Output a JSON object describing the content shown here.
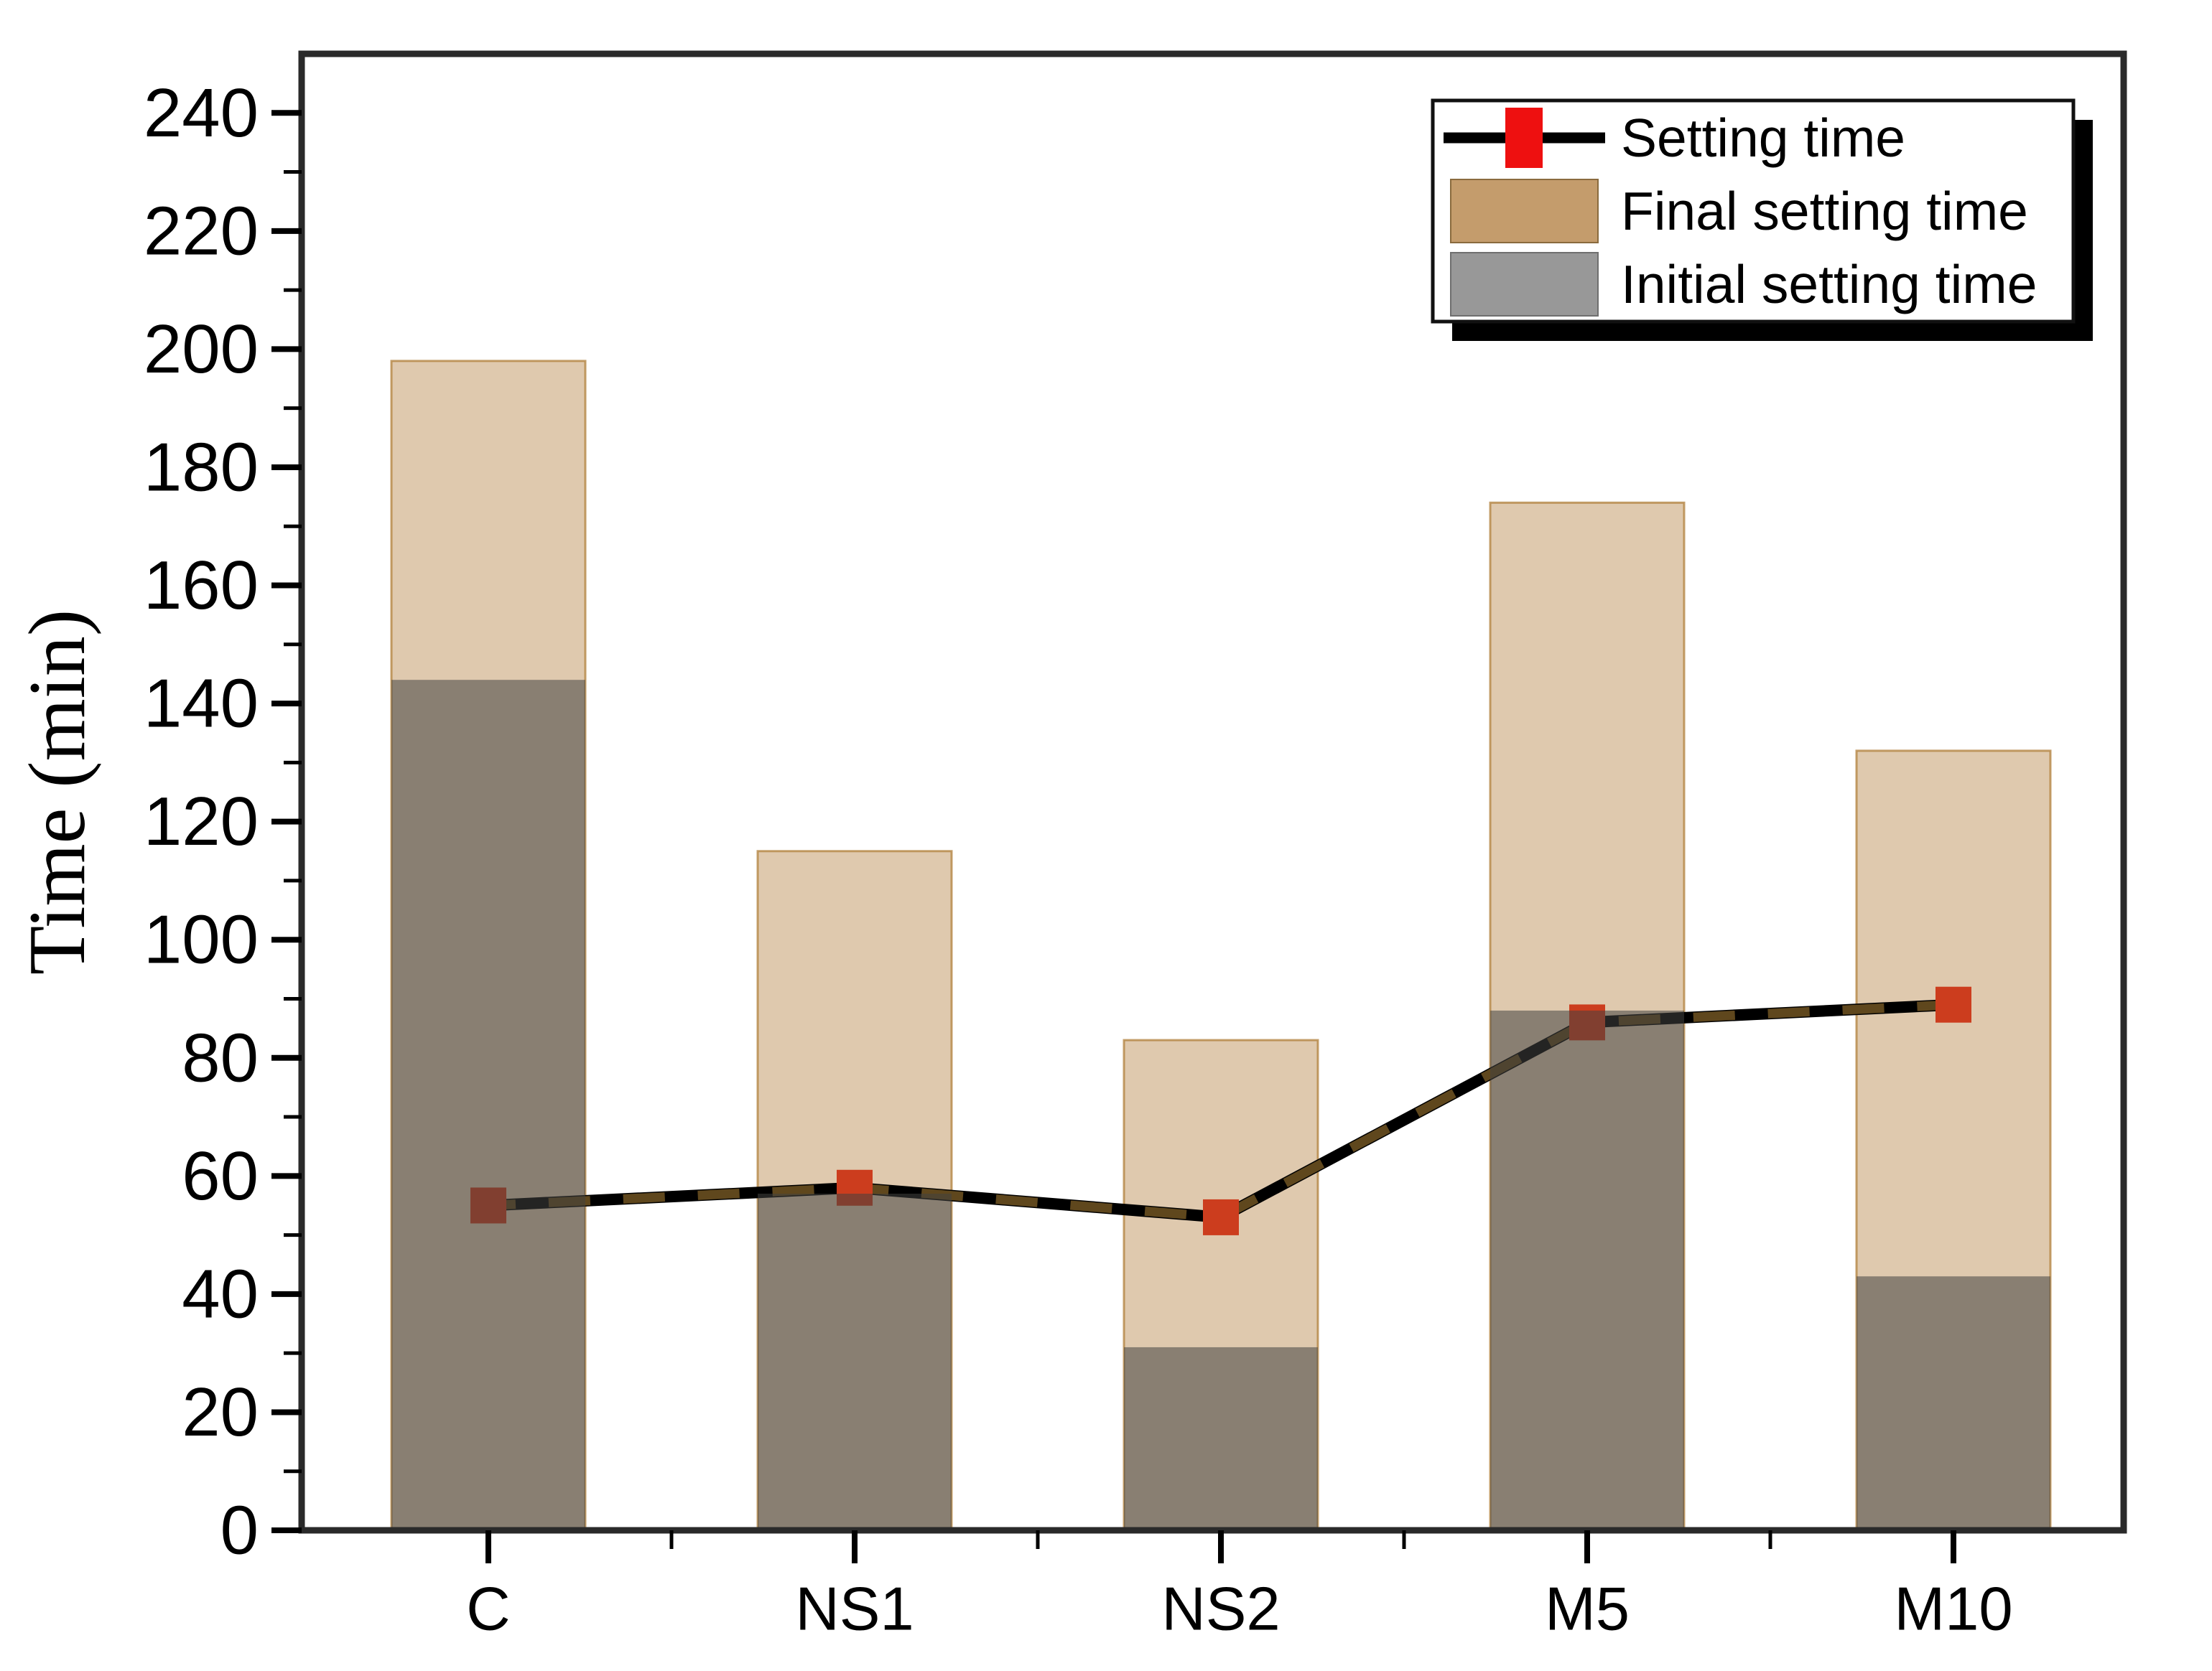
{
  "chart_data": {
    "type": "bar",
    "subtype": "overlapped-bars-with-line-markers",
    "title": "",
    "xlabel": "",
    "ylabel": "Time (min)",
    "categories": [
      "C",
      "NS1",
      "NS2",
      "M5",
      "M10"
    ],
    "series": [
      {
        "name": "Setting time",
        "type": "line",
        "marker": "square",
        "values": [
          55,
          58,
          53,
          86,
          89
        ]
      },
      {
        "name": "Final setting time",
        "type": "bar",
        "values": [
          198,
          115,
          83,
          174,
          132
        ]
      },
      {
        "name": "Initial setting time",
        "type": "bar",
        "values": [
          144,
          57,
          31,
          88,
          43
        ]
      }
    ],
    "ylim": [
      0,
      250
    ],
    "yticks": [
      0,
      20,
      40,
      60,
      80,
      100,
      120,
      140,
      160,
      180,
      200,
      220,
      240
    ],
    "ytick_minor_step": 10,
    "grid": false,
    "legend_position": "top-right",
    "legend_entries": [
      "Setting time",
      "Final setting time",
      "Initial setting time"
    ],
    "colors": {
      "background": "#FFFFFF",
      "frame": "#2A2A2A",
      "tick_and_text": "#000000",
      "final_bar": "#C49C6C",
      "final_bar_edge": "#B07F39",
      "initial_bar": "#424240",
      "setting_line": "#000000",
      "setting_line_dash": "#5F471D",
      "setting_marker": "#CC3D1E",
      "legend_marker_red": "#EE1010",
      "legend_final_swatch": "#C49C6C",
      "legend_initial_swatch": "#989898",
      "legend_shadow": "#000000",
      "legend_border": "#111111"
    }
  }
}
